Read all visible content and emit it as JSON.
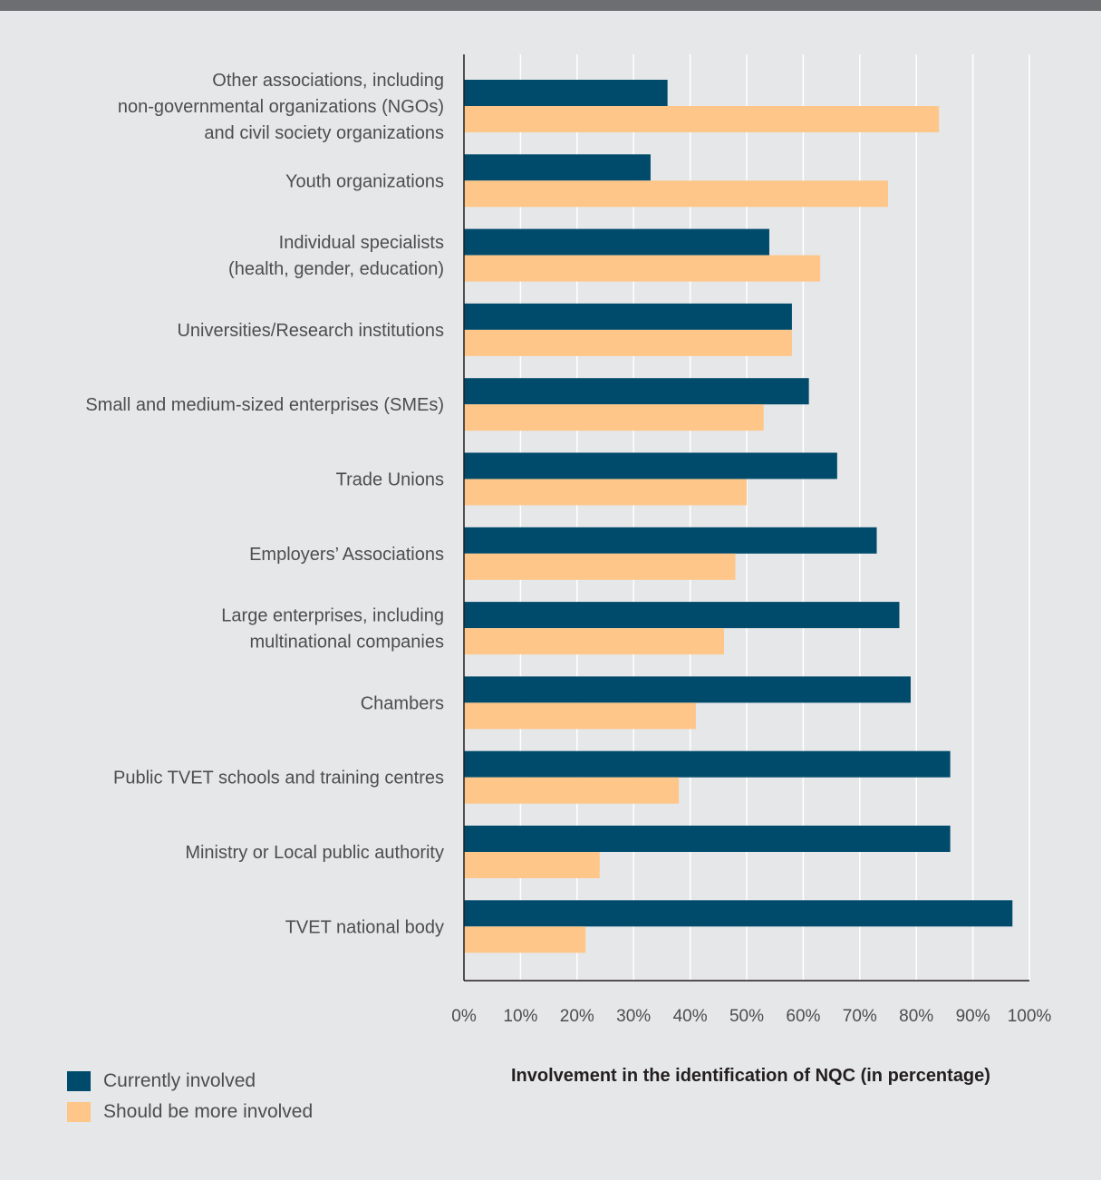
{
  "chart_data": {
    "type": "bar",
    "orientation": "horizontal",
    "categories": [
      [
        "Other associations, including",
        "non-governmental organizations (NGOs)",
        "and civil society organizations"
      ],
      [
        "Youth organizations"
      ],
      [
        "Individual specialists",
        "(health, gender, education)"
      ],
      [
        "Universities/Research institutions"
      ],
      [
        "Small and medium-sized enterprises (SMEs)"
      ],
      [
        "Trade Unions"
      ],
      [
        "Employers’ Associations"
      ],
      [
        "Large enterprises, including",
        "multinational companies"
      ],
      [
        "Chambers"
      ],
      [
        "Public TVET schools and training centres"
      ],
      [
        "Ministry or Local public authority"
      ],
      [
        "TVET national body"
      ]
    ],
    "series": [
      {
        "name": "Currently involved",
        "color": "#004b6b",
        "values": [
          36,
          33,
          54,
          58,
          61,
          66,
          73,
          77,
          79,
          86,
          86,
          97
        ]
      },
      {
        "name": "Should be more involved",
        "color": "#fec689",
        "values": [
          84,
          75,
          63,
          58,
          53,
          50,
          48,
          46,
          41,
          38,
          24,
          21.5
        ]
      }
    ],
    "xlim": [
      0,
      100
    ],
    "ticks": [
      "0%",
      "10%",
      "20%",
      "30%",
      "40%",
      "50%",
      "60%",
      "70%",
      "80%",
      "90%",
      "100%"
    ],
    "xlabel": "Involvement in the identification of NQC (in percentage)",
    "grid": true,
    "legend_position": "bottom-left"
  },
  "legend": {
    "current": "Currently involved",
    "should": "Should be more involved"
  }
}
